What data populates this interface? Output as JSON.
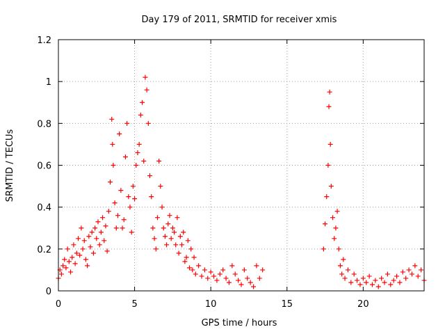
{
  "chart_data": {
    "type": "scatter",
    "title": "Day 179 of 2011, SRMTID for receiver xmis",
    "xlabel": "GPS time / hours",
    "ylabel": "SRMTID / TECUs",
    "xlim": [
      0,
      24
    ],
    "ylim": [
      0,
      1.2
    ],
    "xticks": [
      0,
      5,
      10,
      15,
      20
    ],
    "xtick_labels": [
      "0",
      "5",
      "10",
      "15",
      "20"
    ],
    "yticks": [
      0,
      0.2,
      0.4,
      0.6,
      0.8,
      1.0,
      1.2
    ],
    "ytick_labels": [
      "0",
      "0.2",
      "0.4",
      "0.6",
      "0.8",
      "1",
      "1.2"
    ],
    "grid": true,
    "marker": "+",
    "color": "#ff0000",
    "series": [
      {
        "name": "SRMTID",
        "x": [
          0.0,
          0.1,
          0.2,
          0.3,
          0.4,
          0.5,
          0.6,
          0.7,
          0.8,
          0.9,
          1.0,
          1.1,
          1.2,
          1.3,
          1.4,
          1.5,
          1.6,
          1.7,
          1.8,
          1.9,
          2.0,
          2.1,
          2.2,
          2.3,
          2.4,
          2.5,
          2.6,
          2.7,
          2.8,
          2.9,
          3.0,
          3.1,
          3.2,
          3.3,
          3.4,
          3.5,
          3.55,
          3.6,
          3.7,
          3.8,
          3.9,
          4.0,
          4.1,
          4.2,
          4.3,
          4.4,
          4.5,
          4.6,
          4.7,
          4.8,
          4.9,
          5.0,
          5.1,
          5.2,
          5.3,
          5.4,
          5.5,
          5.6,
          5.7,
          5.8,
          5.9,
          6.0,
          6.1,
          6.2,
          6.3,
          6.4,
          6.5,
          6.6,
          6.7,
          6.8,
          6.9,
          7.0,
          7.1,
          7.2,
          7.3,
          7.4,
          7.5,
          7.6,
          7.7,
          7.8,
          7.9,
          8.0,
          8.1,
          8.2,
          8.3,
          8.4,
          8.5,
          8.6,
          8.7,
          8.8,
          8.9,
          9.0,
          9.2,
          9.4,
          9.6,
          9.8,
          10.0,
          10.2,
          10.4,
          10.6,
          10.8,
          11.0,
          11.2,
          11.4,
          11.6,
          11.8,
          12.0,
          12.2,
          12.4,
          12.6,
          12.8,
          13.0,
          13.2,
          13.4,
          17.4,
          17.5,
          17.6,
          17.7,
          17.75,
          17.8,
          17.85,
          17.9,
          18.0,
          18.1,
          18.2,
          18.3,
          18.4,
          18.5,
          18.6,
          18.7,
          18.8,
          19.0,
          19.2,
          19.4,
          19.6,
          19.8,
          20.0,
          20.2,
          20.4,
          20.6,
          20.8,
          21.0,
          21.2,
          21.4,
          21.6,
          21.8,
          22.0,
          22.2,
          22.4,
          22.6,
          22.8,
          23.0,
          23.2,
          23.4,
          23.6,
          23.8,
          24.0
        ],
        "y": [
          0.06,
          0.1,
          0.08,
          0.12,
          0.15,
          0.11,
          0.2,
          0.14,
          0.09,
          0.16,
          0.22,
          0.13,
          0.18,
          0.25,
          0.17,
          0.3,
          0.2,
          0.24,
          0.15,
          0.12,
          0.26,
          0.21,
          0.28,
          0.18,
          0.3,
          0.25,
          0.33,
          0.22,
          0.28,
          0.35,
          0.24,
          0.31,
          0.19,
          0.38,
          0.52,
          0.82,
          0.7,
          0.6,
          0.42,
          0.3,
          0.36,
          0.75,
          0.48,
          0.3,
          0.34,
          0.64,
          0.8,
          0.45,
          0.4,
          0.28,
          0.5,
          0.44,
          0.6,
          0.66,
          0.7,
          0.84,
          0.9,
          0.62,
          1.02,
          0.96,
          0.8,
          0.55,
          0.45,
          0.3,
          0.25,
          0.2,
          0.35,
          0.62,
          0.5,
          0.4,
          0.3,
          0.26,
          0.22,
          0.32,
          0.36,
          0.25,
          0.3,
          0.28,
          0.22,
          0.35,
          0.18,
          0.26,
          0.22,
          0.28,
          0.14,
          0.16,
          0.24,
          0.11,
          0.2,
          0.1,
          0.16,
          0.08,
          0.12,
          0.07,
          0.1,
          0.06,
          0.09,
          0.07,
          0.05,
          0.08,
          0.1,
          0.06,
          0.04,
          0.12,
          0.08,
          0.05,
          0.03,
          0.1,
          0.06,
          0.04,
          0.02,
          0.12,
          0.06,
          0.1,
          0.2,
          0.32,
          0.45,
          0.6,
          0.88,
          0.95,
          0.7,
          0.5,
          0.35,
          0.25,
          0.3,
          0.38,
          0.2,
          0.12,
          0.08,
          0.15,
          0.06,
          0.1,
          0.04,
          0.08,
          0.05,
          0.03,
          0.06,
          0.04,
          0.07,
          0.03,
          0.05,
          0.02,
          0.06,
          0.04,
          0.08,
          0.03,
          0.05,
          0.07,
          0.04,
          0.09,
          0.06,
          0.1,
          0.08,
          0.12,
          0.07,
          0.1,
          0.05
        ]
      }
    ]
  }
}
